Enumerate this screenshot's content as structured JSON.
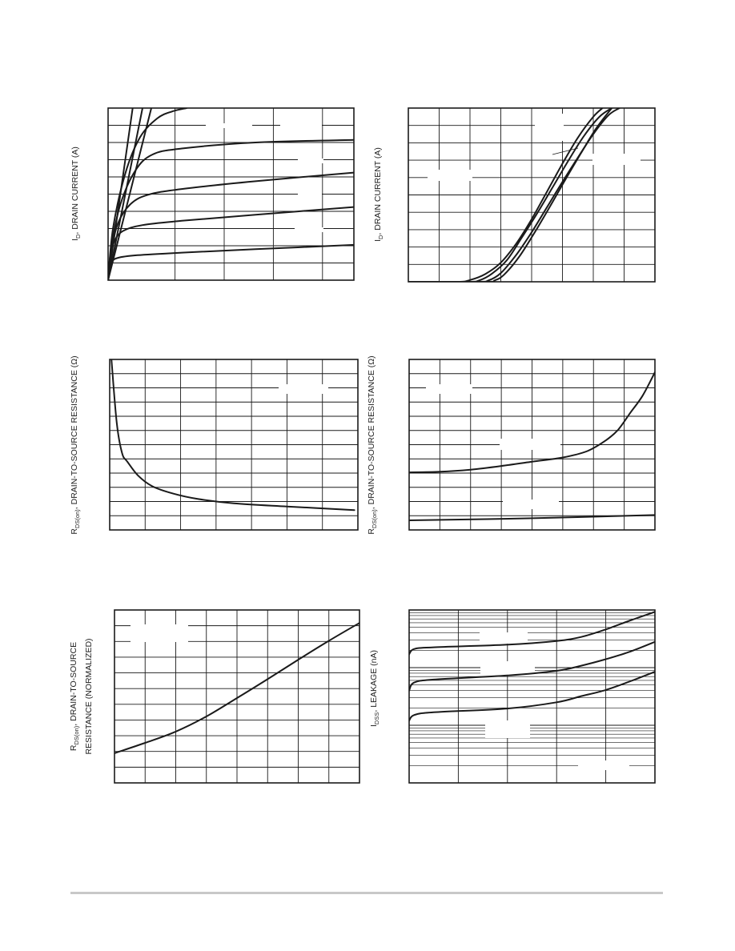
{
  "chart_data": [
    {
      "id": "chart1",
      "type": "line",
      "ylabel": "I",
      "ylabel_sub": "D",
      "ylabel_rest": ", DRAIN CURRENT (A)",
      "series": [
        {
          "values": [
            [
              0,
              0
            ],
            [
              0.02,
              0.62
            ],
            [
              0.07,
              1.05
            ],
            [
              0.2,
              1.3
            ],
            [
              0.6,
              1.45
            ],
            [
              1.5,
              1.6
            ],
            [
              3,
              1.8
            ],
            [
              5,
              2.05
            ]
          ]
        },
        {
          "values": [
            [
              0,
              0
            ],
            [
              0.03,
              1.05
            ],
            [
              0.12,
              2.2
            ],
            [
              0.3,
              2.85
            ],
            [
              0.7,
              3.2
            ],
            [
              1.5,
              3.45
            ],
            [
              3,
              3.8
            ],
            [
              5,
              4.25
            ]
          ]
        },
        {
          "values": [
            [
              0,
              0
            ],
            [
              0.05,
              1.5
            ],
            [
              0.2,
              3.3
            ],
            [
              0.45,
              4.4
            ],
            [
              0.8,
              4.95
            ],
            [
              1.5,
              5.3
            ],
            [
              3,
              5.75
            ],
            [
              5,
              6.25
            ]
          ]
        },
        {
          "values": [
            [
              0,
              0
            ],
            [
              0.07,
              2.0
            ],
            [
              0.25,
              4.4
            ],
            [
              0.55,
              6.35
            ],
            [
              0.9,
              7.3
            ],
            [
              1.5,
              7.65
            ],
            [
              3,
              8.0
            ],
            [
              5,
              8.15
            ]
          ]
        },
        {
          "values": [
            [
              0,
              0
            ],
            [
              0.1,
              3.0
            ],
            [
              0.35,
              6.2
            ],
            [
              0.65,
              8.3
            ],
            [
              1.0,
              9.4
            ],
            [
              1.3,
              9.8
            ],
            [
              1.6,
              10
            ]
          ]
        },
        {
          "values": [
            [
              0,
              0
            ],
            [
              0.5,
              10
            ]
          ]
        },
        {
          "values": [
            [
              0,
              0
            ],
            [
              0.7,
              10
            ]
          ]
        },
        {
          "values": [
            [
              0,
              0
            ],
            [
              0.88,
              10
            ]
          ]
        }
      ]
    },
    {
      "id": "chart2",
      "type": "line",
      "ylabel": "I",
      "ylabel_sub": "D",
      "ylabel_rest": ", DRAIN CURRENT (A)",
      "series": [
        {
          "values": [
            [
              0,
              0
            ],
            [
              1.6,
              0
            ],
            [
              2,
              0.1
            ],
            [
              2.5,
              0.45
            ],
            [
              3,
              1.1
            ],
            [
              3.5,
              2.2
            ],
            [
              4,
              3.6
            ],
            [
              4.5,
              5.2
            ],
            [
              5,
              6.8
            ],
            [
              5.5,
              8.3
            ],
            [
              6,
              9.5
            ],
            [
              6.3,
              10
            ]
          ]
        },
        {
          "values": [
            [
              0,
              0
            ],
            [
              1.9,
              0
            ],
            [
              2.3,
              0.08
            ],
            [
              2.7,
              0.45
            ],
            [
              3.2,
              1.25
            ],
            [
              3.7,
              2.6
            ],
            [
              4.2,
              4.0
            ],
            [
              4.7,
              5.5
            ],
            [
              5.2,
              7.0
            ],
            [
              5.7,
              8.4
            ],
            [
              6.2,
              9.5
            ],
            [
              6.6,
              10
            ]
          ]
        },
        {
          "values": [
            [
              0,
              0
            ],
            [
              2.2,
              0
            ],
            [
              2.6,
              0.08
            ],
            [
              3.0,
              0.5
            ],
            [
              3.5,
              1.55
            ],
            [
              4.0,
              2.85
            ],
            [
              4.5,
              4.3
            ],
            [
              5.0,
              5.75
            ],
            [
              5.5,
              7.15
            ],
            [
              6.0,
              8.5
            ],
            [
              6.5,
              9.6
            ],
            [
              6.85,
              10
            ]
          ]
        },
        {
          "values": [
            [
              0,
              0
            ],
            [
              2.5,
              0
            ],
            [
              2.8,
              0.08
            ],
            [
              3.1,
              0.4
            ],
            [
              3.6,
              1.45
            ],
            [
              4.1,
              2.85
            ],
            [
              4.6,
              4.35
            ],
            [
              5.1,
              5.9
            ],
            [
              5.6,
              7.4
            ],
            [
              6.1,
              8.85
            ],
            [
              6.6,
              10
            ]
          ]
        }
      ]
    },
    {
      "id": "chart3",
      "type": "line",
      "ylabel": "R",
      "ylabel_sub": "DS(on)",
      "ylabel_rest": ", DRAIN-TO-SOURCE RESISTANCE (Ω)",
      "series": [
        {
          "values": [
            [
              0.05,
              1.0
            ],
            [
              0.2,
              0.7
            ],
            [
              0.35,
              0.56
            ],
            [
              0.5,
              0.52
            ],
            [
              0.8,
              0.455
            ],
            [
              1.2,
              0.405
            ],
            [
              1.8,
              0.37
            ],
            [
              2.5,
              0.345
            ],
            [
              3.5,
              0.325
            ],
            [
              5,
              0.31
            ],
            [
              6.9,
              0.293
            ]
          ]
        }
      ]
    },
    {
      "id": "chart4",
      "type": "line",
      "ylabel": "R",
      "ylabel_sub": "DS(on)",
      "ylabel_rest": ", DRAIN-TO-SOURCE RESISTANCE (Ω)",
      "series": [
        {
          "values": [
            [
              0,
              0.27
            ],
            [
              1,
              0.273
            ],
            [
              2,
              0.283
            ],
            [
              3,
              0.3
            ],
            [
              4,
              0.32
            ],
            [
              5,
              0.34
            ],
            [
              5.8,
              0.37
            ],
            [
              6.4,
              0.42
            ],
            [
              6.8,
              0.47
            ],
            [
              7.2,
              0.55
            ],
            [
              7.6,
              0.63
            ],
            [
              8,
              0.74
            ]
          ]
        },
        {
          "values": [
            [
              0,
              0.045
            ],
            [
              4,
              0.055
            ],
            [
              8,
              0.07
            ]
          ]
        }
      ]
    },
    {
      "id": "chart5",
      "type": "line",
      "ylabel": "R",
      "ylabel_sub": "DS(on)",
      "ylabel_rest": ", DRAIN-TO-SOURCE",
      "ylabel2": "RESISTANCE (NORMALIZED)",
      "series": [
        {
          "values": [
            [
              0,
              0.55
            ],
            [
              1,
              0.74
            ],
            [
              2,
              0.95
            ],
            [
              3,
              1.23
            ],
            [
              4,
              1.57
            ],
            [
              5,
              1.92
            ],
            [
              6,
              2.28
            ],
            [
              7,
              2.63
            ],
            [
              8,
              2.96
            ]
          ]
        }
      ]
    },
    {
      "id": "chart6",
      "type": "line",
      "ylabel": "I",
      "ylabel_sub": "DSS",
      "ylabel_rest": ", LEAKAGE (nA)",
      "series": [
        {
          "values": [
            [
              0,
              17
            ],
            [
              0.1,
              21
            ],
            [
              0.5,
              22.5
            ],
            [
              2,
              25
            ],
            [
              3,
              29
            ],
            [
              3.5,
              34
            ],
            [
              4,
              46
            ],
            [
              4.5,
              66
            ],
            [
              5,
              93
            ]
          ]
        },
        {
          "values": [
            [
              0,
              4
            ],
            [
              0.1,
              5.5
            ],
            [
              0.5,
              6.2
            ],
            [
              2,
              7.3
            ],
            [
              3,
              8.8
            ],
            [
              3.5,
              10.8
            ],
            [
              4,
              14
            ],
            [
              4.5,
              19
            ],
            [
              5,
              28
            ]
          ]
        },
        {
          "values": [
            [
              0,
              1.2
            ],
            [
              0.1,
              1.5
            ],
            [
              0.5,
              1.68
            ],
            [
              2,
              1.95
            ],
            [
              3,
              2.5
            ],
            [
              3.5,
              3.2
            ],
            [
              4,
              4.1
            ],
            [
              4.5,
              5.8
            ],
            [
              5,
              8.5
            ]
          ]
        }
      ]
    }
  ]
}
